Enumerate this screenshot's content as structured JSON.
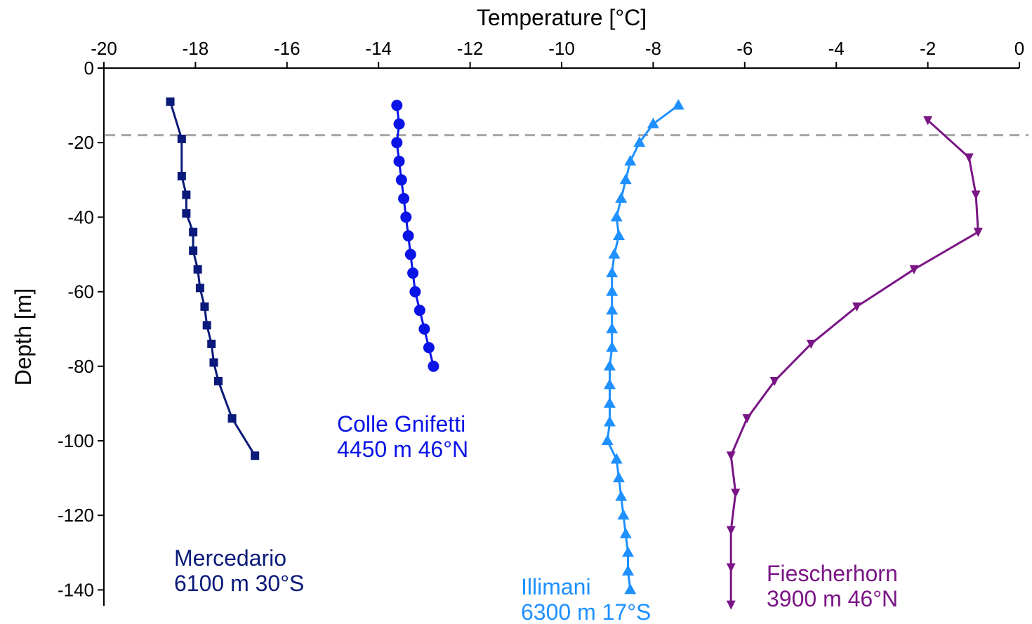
{
  "chart_data": {
    "type": "line",
    "title": "",
    "xlabel": "Temperature [°C]",
    "ylabel": "Depth [m]",
    "xlim": [
      -20,
      0
    ],
    "ylim": [
      -145,
      0
    ],
    "x_axis_position": "top",
    "grid": false,
    "legend": "none",
    "x_ticks": [
      "-20",
      "-18",
      "-16",
      "-14",
      "-12",
      "-10",
      "-8",
      "-6",
      "-4",
      "-2",
      "0"
    ],
    "y_ticks": [
      "0",
      "-20",
      "-40",
      "-60",
      "-80",
      "-100",
      "-120",
      "-140"
    ],
    "reference_line": {
      "y": -18,
      "style": "dashed",
      "color": "#a6a6a6"
    },
    "series": [
      {
        "name": "Mercedario",
        "label_lines": [
          "Mercedario",
          "6100 m 30°S"
        ],
        "color": "#0a1a7a",
        "marker": "square",
        "points": [
          [
            -18.55,
            -9
          ],
          [
            -18.3,
            -19
          ],
          [
            -18.3,
            -29
          ],
          [
            -18.2,
            -34
          ],
          [
            -18.2,
            -39
          ],
          [
            -18.05,
            -44
          ],
          [
            -18.05,
            -49
          ],
          [
            -17.95,
            -54
          ],
          [
            -17.9,
            -59
          ],
          [
            -17.8,
            -64
          ],
          [
            -17.75,
            -69
          ],
          [
            -17.65,
            -74
          ],
          [
            -17.6,
            -79
          ],
          [
            -17.5,
            -84
          ],
          [
            -17.2,
            -94
          ],
          [
            -16.7,
            -104
          ]
        ]
      },
      {
        "name": "Colle Gnifetti",
        "label_lines": [
          "Colle Gnifetti",
          "4450 m 46°N"
        ],
        "color": "#0a14e6",
        "marker": "circle",
        "points": [
          [
            -13.6,
            -10
          ],
          [
            -13.55,
            -15
          ],
          [
            -13.6,
            -20
          ],
          [
            -13.55,
            -25
          ],
          [
            -13.5,
            -30
          ],
          [
            -13.45,
            -35
          ],
          [
            -13.4,
            -40
          ],
          [
            -13.35,
            -45
          ],
          [
            -13.3,
            -50
          ],
          [
            -13.25,
            -55
          ],
          [
            -13.2,
            -60
          ],
          [
            -13.1,
            -65
          ],
          [
            -13.0,
            -70
          ],
          [
            -12.9,
            -75
          ],
          [
            -12.8,
            -80
          ]
        ]
      },
      {
        "name": "Illimani",
        "label_lines": [
          "Illimani",
          "6300 m 17°S"
        ],
        "color": "#1e90ff",
        "marker": "triangle-up",
        "points": [
          [
            -7.45,
            -10
          ],
          [
            -8.0,
            -15
          ],
          [
            -8.3,
            -20
          ],
          [
            -8.5,
            -25
          ],
          [
            -8.6,
            -30
          ],
          [
            -8.7,
            -35
          ],
          [
            -8.8,
            -40
          ],
          [
            -8.75,
            -45
          ],
          [
            -8.85,
            -50
          ],
          [
            -8.9,
            -55
          ],
          [
            -8.9,
            -60
          ],
          [
            -8.9,
            -65
          ],
          [
            -8.9,
            -70
          ],
          [
            -8.9,
            -75
          ],
          [
            -8.95,
            -80
          ],
          [
            -8.95,
            -85
          ],
          [
            -8.95,
            -90
          ],
          [
            -8.95,
            -95
          ],
          [
            -9.0,
            -100
          ],
          [
            -8.8,
            -105
          ],
          [
            -8.75,
            -110
          ],
          [
            -8.7,
            -115
          ],
          [
            -8.65,
            -120
          ],
          [
            -8.6,
            -125
          ],
          [
            -8.55,
            -130
          ],
          [
            -8.55,
            -135
          ],
          [
            -8.5,
            -140
          ]
        ]
      },
      {
        "name": "Fiescherhorn",
        "label_lines": [
          "Fiescherhorn",
          "3900 m 46°N"
        ],
        "color": "#7a1585",
        "marker": "triangle-down",
        "points": [
          [
            -2.0,
            -14
          ],
          [
            -1.1,
            -24
          ],
          [
            -0.95,
            -34
          ],
          [
            -0.9,
            -44
          ],
          [
            -2.3,
            -54
          ],
          [
            -3.55,
            -64
          ],
          [
            -4.55,
            -74
          ],
          [
            -5.35,
            -84
          ],
          [
            -5.95,
            -94
          ],
          [
            -6.3,
            -104
          ],
          [
            -6.2,
            -114
          ],
          [
            -6.3,
            -124
          ],
          [
            -6.3,
            -134
          ],
          [
            -6.3,
            -144
          ]
        ]
      }
    ]
  }
}
